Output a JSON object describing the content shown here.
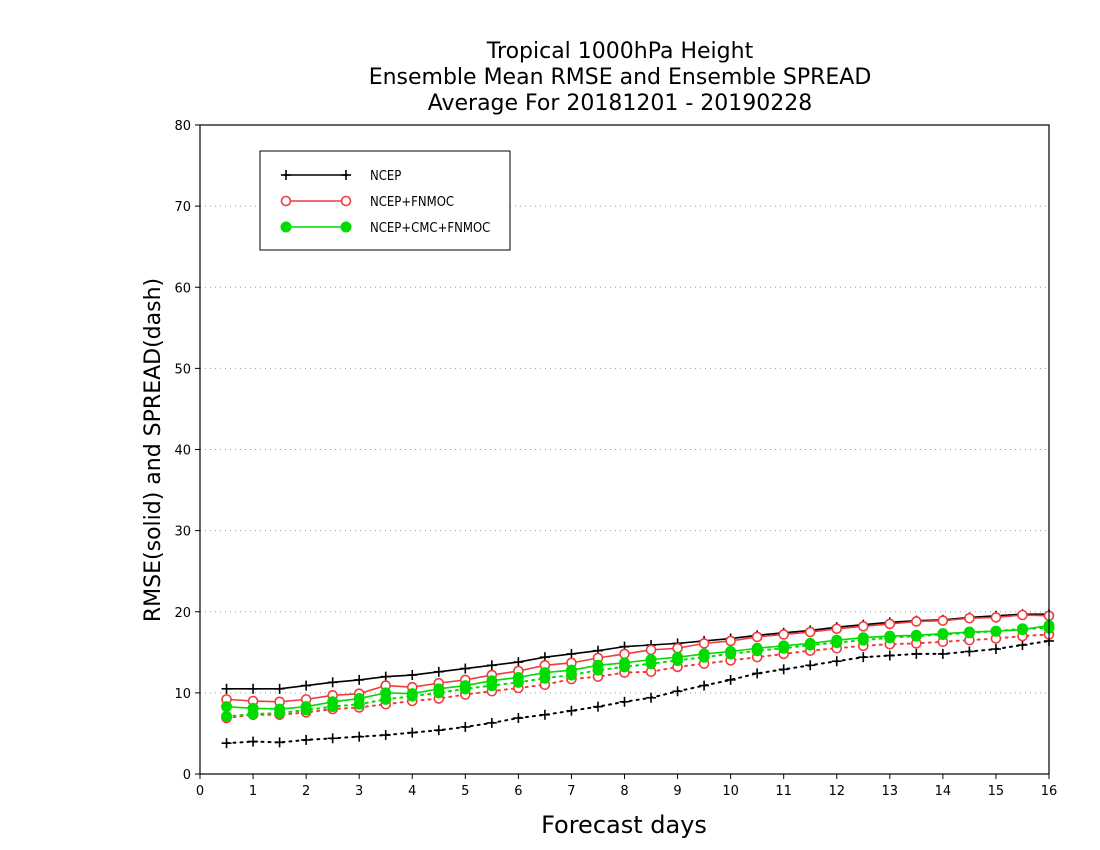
{
  "chart_data": {
    "type": "line",
    "title_lines": [
      "Tropical 1000hPa Height",
      "Ensemble Mean RMSE and Ensemble SPREAD",
      "Average For 20181201 - 20190228"
    ],
    "xlabel": "Forecast days",
    "ylabel": "RMSE(solid) and SPREAD(dash)",
    "xlim": [
      0,
      16
    ],
    "ylim": [
      0,
      80
    ],
    "xticks": [
      0,
      1,
      2,
      3,
      4,
      5,
      6,
      7,
      8,
      9,
      10,
      11,
      12,
      13,
      14,
      15,
      16
    ],
    "yticks": [
      0,
      10,
      20,
      30,
      40,
      50,
      60,
      70,
      80
    ],
    "grid": "horizontal dotted",
    "legend_position": "top-left",
    "x": [
      0.5,
      1,
      1.5,
      2,
      2.5,
      3,
      3.5,
      4,
      4.5,
      5,
      5.5,
      6,
      6.5,
      7,
      7.5,
      8,
      8.5,
      9,
      9.5,
      10,
      10.5,
      11,
      11.5,
      12,
      12.5,
      13,
      13.5,
      14,
      14.5,
      15,
      15.5,
      16
    ],
    "series": [
      {
        "name": "NCEP",
        "color": "#000000",
        "marker": "plus",
        "rmse": [
          10.5,
          10.5,
          10.5,
          10.9,
          11.3,
          11.6,
          12.0,
          12.2,
          12.6,
          13.0,
          13.4,
          13.8,
          14.4,
          14.8,
          15.2,
          15.7,
          15.9,
          16.1,
          16.4,
          16.7,
          17.1,
          17.4,
          17.7,
          18.1,
          18.4,
          18.7,
          18.9,
          19.0,
          19.3,
          19.5,
          19.7,
          19.7
        ],
        "spread": [
          3.8,
          4.0,
          3.9,
          4.2,
          4.4,
          4.6,
          4.8,
          5.1,
          5.4,
          5.8,
          6.3,
          6.9,
          7.3,
          7.8,
          8.3,
          8.9,
          9.4,
          10.2,
          10.9,
          11.6,
          12.4,
          12.9,
          13.4,
          13.9,
          14.4,
          14.6,
          14.8,
          14.8,
          15.1,
          15.4,
          15.9,
          16.4
        ]
      },
      {
        "name": "NCEP+FNMOC",
        "color": "#f03c3c",
        "marker": "open-circle",
        "rmse": [
          9.2,
          9.0,
          8.9,
          9.2,
          9.7,
          9.9,
          10.9,
          10.7,
          11.2,
          11.6,
          12.2,
          12.7,
          13.4,
          13.7,
          14.3,
          14.8,
          15.3,
          15.5,
          16.1,
          16.4,
          16.9,
          17.2,
          17.5,
          17.9,
          18.2,
          18.5,
          18.8,
          18.9,
          19.2,
          19.3,
          19.6,
          19.5
        ],
        "spread": [
          6.9,
          7.3,
          7.3,
          7.6,
          8.0,
          8.2,
          8.6,
          9.0,
          9.3,
          9.8,
          10.2,
          10.6,
          11.0,
          11.7,
          12.0,
          12.5,
          12.6,
          13.2,
          13.6,
          14.0,
          14.4,
          14.8,
          15.2,
          15.5,
          15.8,
          16.0,
          16.1,
          16.3,
          16.5,
          16.7,
          17.0,
          17.2
        ]
      },
      {
        "name": "NCEP+CMC+FNMOC",
        "color": "#00dc00",
        "marker": "filled-circle",
        "rmse": [
          8.3,
          8.1,
          8.0,
          8.3,
          8.9,
          9.3,
          10.0,
          9.9,
          10.5,
          10.9,
          11.5,
          11.9,
          12.5,
          12.8,
          13.4,
          13.7,
          14.1,
          14.4,
          14.8,
          15.1,
          15.5,
          15.8,
          16.1,
          16.5,
          16.8,
          17.0,
          17.1,
          17.3,
          17.5,
          17.6,
          17.8,
          18.3
        ],
        "spread": [
          7.1,
          7.4,
          7.5,
          7.9,
          8.3,
          8.6,
          9.2,
          9.6,
          10.0,
          10.5,
          10.9,
          11.3,
          11.8,
          12.2,
          12.8,
          13.2,
          13.6,
          14.0,
          14.4,
          14.8,
          15.2,
          15.5,
          15.9,
          16.2,
          16.5,
          16.8,
          17.0,
          17.2,
          17.4,
          17.6,
          17.9,
          18.0
        ]
      }
    ]
  }
}
